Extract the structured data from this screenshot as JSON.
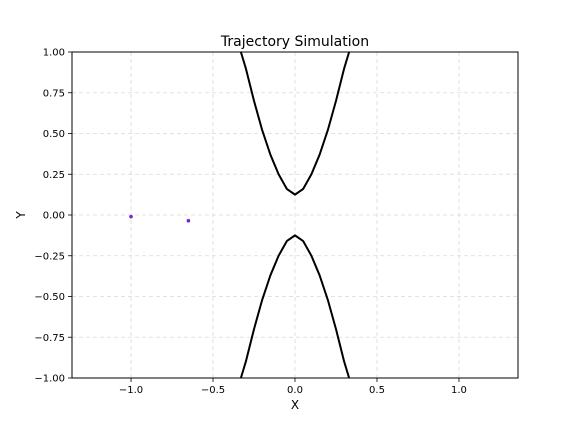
{
  "chart_data": {
    "type": "line",
    "title": "Trajectory Simulation",
    "xlabel": "X",
    "ylabel": "Y",
    "xlim": [
      -1.36,
      1.36
    ],
    "ylim": [
      -1.0,
      1.0
    ],
    "grid": true,
    "x_ticks": [
      -1.0,
      -0.5,
      0.0,
      0.5,
      1.0
    ],
    "x_tick_labels": [
      "−1.0",
      "−0.5",
      "0.0",
      "0.5",
      "1.0"
    ],
    "y_ticks": [
      -1.0,
      -0.75,
      -0.5,
      -0.25,
      0.0,
      0.25,
      0.5,
      0.75,
      1.0
    ],
    "y_tick_labels": [
      "−1.00",
      "−0.75",
      "−0.50",
      "−0.25",
      "0.00",
      "0.25",
      "0.50",
      "0.75",
      "1.00"
    ],
    "boundary_color": "#000000",
    "point_color": "#7b1fe0",
    "boundaries": [
      {
        "x": [
          -0.33,
          -0.3,
          -0.25,
          -0.2,
          -0.15,
          -0.1,
          -0.05,
          0.0,
          0.05,
          0.1,
          0.15,
          0.2,
          0.25,
          0.3,
          0.33
        ],
        "y": [
          1.0,
          0.9,
          0.7,
          0.52,
          0.37,
          0.25,
          0.16,
          0.125,
          0.16,
          0.25,
          0.37,
          0.52,
          0.7,
          0.9,
          1.0
        ]
      },
      {
        "x": [
          -0.33,
          -0.3,
          -0.25,
          -0.2,
          -0.15,
          -0.1,
          -0.05,
          0.0,
          0.05,
          0.1,
          0.15,
          0.2,
          0.25,
          0.3,
          0.33
        ],
        "y": [
          -1.0,
          -0.9,
          -0.7,
          -0.52,
          -0.37,
          -0.25,
          -0.16,
          -0.125,
          -0.16,
          -0.25,
          -0.37,
          -0.52,
          -0.7,
          -0.9,
          -1.0
        ]
      }
    ],
    "points": [
      {
        "x": -1.0,
        "y": -0.01
      },
      {
        "x": -0.65,
        "y": -0.035
      }
    ]
  }
}
